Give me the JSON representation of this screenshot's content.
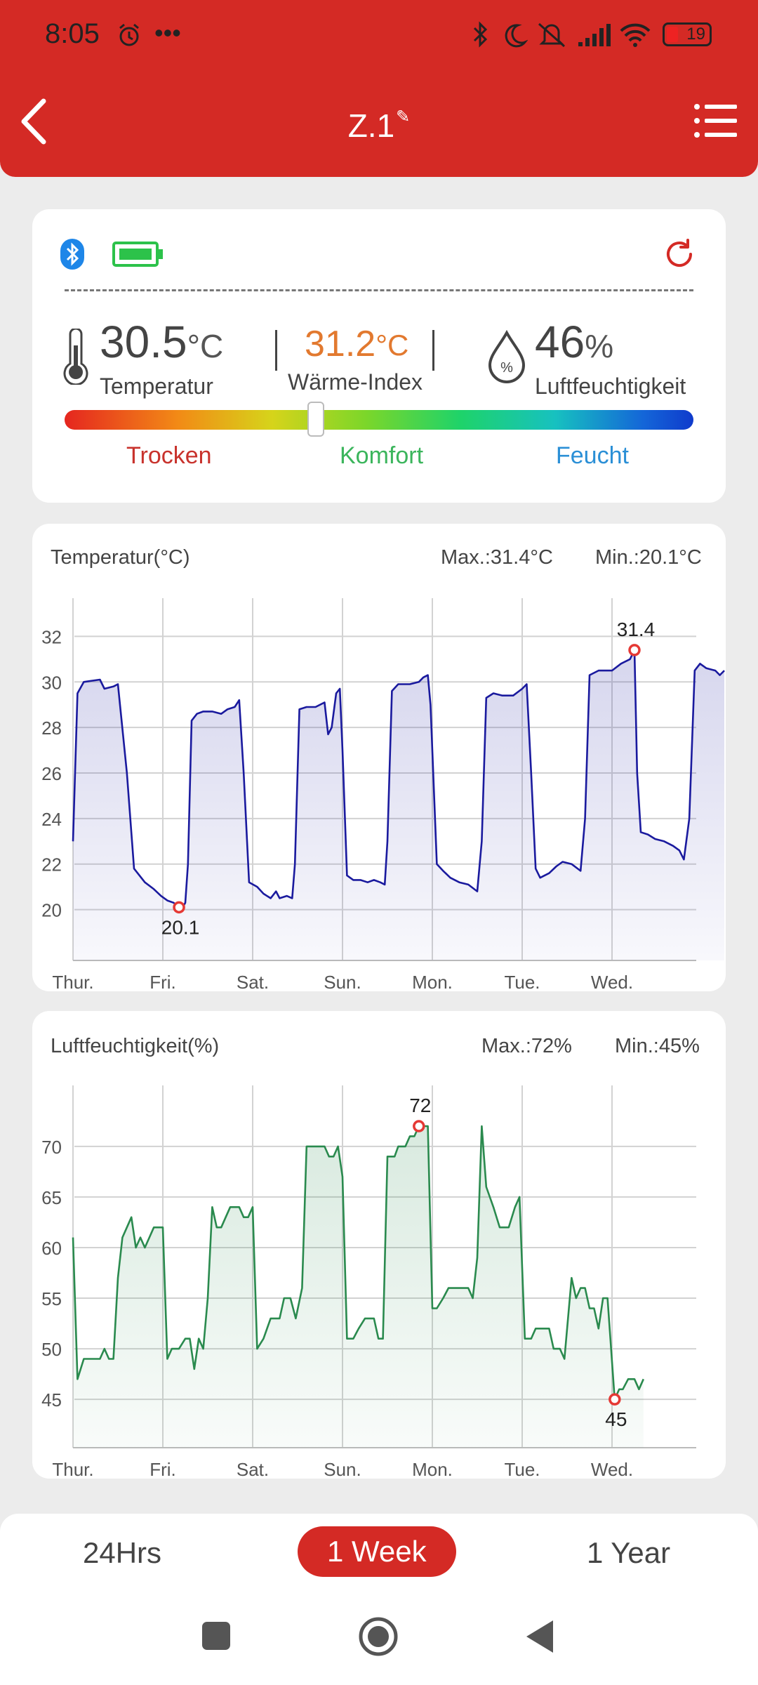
{
  "status_bar": {
    "time": "8:05",
    "battery": "19"
  },
  "header": {
    "title": "Z.1",
    "edit_icon": "edit-icon"
  },
  "sensor": {
    "temperature": {
      "value": "30.5",
      "unit": "°C",
      "label": "Temperatur"
    },
    "heat_index": {
      "value": "31.2",
      "unit": "°C",
      "label": "Wärme-Index"
    },
    "humidity": {
      "value": "46",
      "unit": "%",
      "label": "Luftfeuchtigkeit"
    },
    "comfort_bar": {
      "position": 0.4,
      "labels": [
        "Trocken",
        "Komfort",
        "Feucht"
      ]
    },
    "colors": {
      "dry": "#c8322c",
      "comfort": "#3bb55c",
      "humid": "#2a8fd6",
      "heat": "#e2792f"
    }
  },
  "temp_chart": {
    "title": "Temperatur(°C)",
    "max_label": "Max.:31.4°C",
    "min_label": "Min.:20.1°C"
  },
  "hum_chart": {
    "title": "Luftfeuchtigkeit(%)",
    "max_label": "Max.:72%",
    "min_label": "Min.:45%"
  },
  "chart_data": [
    {
      "type": "area",
      "title": "Temperatur(°C)",
      "x_ticks": [
        "Thur.",
        "Fri.",
        "Sat.",
        "Sun.",
        "Mon.",
        "Tue.",
        "Wed."
      ],
      "y_ticks": [
        20,
        22,
        24,
        26,
        28,
        30,
        32
      ],
      "ylim": [
        19,
        33
      ],
      "xlim": [
        0,
        7
      ],
      "color": "#1a1a9e",
      "points": [
        [
          0,
          23
        ],
        [
          0.05,
          29.5
        ],
        [
          0.12,
          30
        ],
        [
          0.3,
          30.1
        ],
        [
          0.35,
          29.7
        ],
        [
          0.45,
          29.8
        ],
        [
          0.5,
          29.9
        ],
        [
          0.6,
          26
        ],
        [
          0.68,
          21.8
        ],
        [
          0.8,
          21.2
        ],
        [
          0.9,
          20.9
        ],
        [
          0.98,
          20.6
        ],
        [
          1.05,
          20.4
        ],
        [
          1.12,
          20.3
        ],
        [
          1.15,
          20.2
        ],
        [
          1.18,
          20.1
        ],
        [
          1.22,
          20.1
        ],
        [
          1.25,
          20.3
        ],
        [
          1.28,
          22
        ],
        [
          1.32,
          28.3
        ],
        [
          1.38,
          28.6
        ],
        [
          1.45,
          28.7
        ],
        [
          1.55,
          28.7
        ],
        [
          1.65,
          28.6
        ],
        [
          1.72,
          28.8
        ],
        [
          1.8,
          28.9
        ],
        [
          1.85,
          29.2
        ],
        [
          1.9,
          26
        ],
        [
          1.96,
          21.2
        ],
        [
          2.05,
          21
        ],
        [
          2.12,
          20.7
        ],
        [
          2.2,
          20.5
        ],
        [
          2.26,
          20.8
        ],
        [
          2.3,
          20.5
        ],
        [
          2.38,
          20.6
        ],
        [
          2.44,
          20.5
        ],
        [
          2.47,
          22
        ],
        [
          2.52,
          28.8
        ],
        [
          2.6,
          28.9
        ],
        [
          2.7,
          28.9
        ],
        [
          2.8,
          29.1
        ],
        [
          2.84,
          27.7
        ],
        [
          2.88,
          28
        ],
        [
          2.93,
          29.5
        ],
        [
          2.97,
          29.7
        ],
        [
          3.0,
          27
        ],
        [
          3.05,
          21.5
        ],
        [
          3.12,
          21.3
        ],
        [
          3.2,
          21.3
        ],
        [
          3.28,
          21.2
        ],
        [
          3.35,
          21.3
        ],
        [
          3.42,
          21.2
        ],
        [
          3.47,
          21.1
        ],
        [
          3.5,
          23
        ],
        [
          3.55,
          29.6
        ],
        [
          3.62,
          29.9
        ],
        [
          3.75,
          29.9
        ],
        [
          3.85,
          30
        ],
        [
          3.9,
          30.2
        ],
        [
          3.95,
          30.3
        ],
        [
          3.98,
          29
        ],
        [
          4.05,
          22
        ],
        [
          4.12,
          21.7
        ],
        [
          4.2,
          21.4
        ],
        [
          4.3,
          21.2
        ],
        [
          4.4,
          21.1
        ],
        [
          4.5,
          20.8
        ],
        [
          4.55,
          23
        ],
        [
          4.6,
          29.3
        ],
        [
          4.68,
          29.5
        ],
        [
          4.78,
          29.4
        ],
        [
          4.9,
          29.4
        ],
        [
          5.0,
          29.7
        ],
        [
          5.05,
          29.9
        ],
        [
          5.1,
          26
        ],
        [
          5.15,
          21.8
        ],
        [
          5.2,
          21.4
        ],
        [
          5.3,
          21.6
        ],
        [
          5.38,
          21.9
        ],
        [
          5.45,
          22.1
        ],
        [
          5.55,
          22
        ],
        [
          5.65,
          21.7
        ],
        [
          5.7,
          24
        ],
        [
          5.75,
          30.3
        ],
        [
          5.85,
          30.5
        ],
        [
          6.0,
          30.5
        ],
        [
          6.1,
          30.8
        ],
        [
          6.2,
          31
        ],
        [
          6.25,
          31.4
        ],
        [
          6.28,
          26
        ],
        [
          6.32,
          23.4
        ],
        [
          6.4,
          23.3
        ],
        [
          6.48,
          23.1
        ],
        [
          6.58,
          23
        ],
        [
          6.68,
          22.8
        ],
        [
          6.75,
          22.6
        ],
        [
          6.8,
          22.2
        ],
        [
          6.86,
          24
        ],
        [
          6.92,
          30.5
        ],
        [
          6.98,
          30.8
        ],
        [
          7.05,
          30.6
        ],
        [
          7.15,
          30.5
        ],
        [
          7.2,
          30.3
        ],
        [
          7.25,
          30.5
        ]
      ],
      "max": {
        "x": 6.25,
        "y": 31.4,
        "label": "31.4"
      },
      "min": {
        "x": 1.18,
        "y": 20.1,
        "label": "20.1"
      }
    },
    {
      "type": "area",
      "title": "Luftfeuchtigkeit(%)",
      "x_ticks": [
        "Thur.",
        "Fri.",
        "Sat.",
        "Sun.",
        "Mon.",
        "Tue.",
        "Wed."
      ],
      "y_ticks": [
        45,
        50,
        55,
        60,
        65,
        70
      ],
      "ylim": [
        43,
        74.5
      ],
      "xlim": [
        0,
        7
      ],
      "color": "#2a8a4e",
      "points": [
        [
          0,
          61
        ],
        [
          0.05,
          47
        ],
        [
          0.12,
          49
        ],
        [
          0.25,
          49
        ],
        [
          0.3,
          49
        ],
        [
          0.35,
          50
        ],
        [
          0.4,
          49
        ],
        [
          0.45,
          49
        ],
        [
          0.5,
          57
        ],
        [
          0.55,
          61
        ],
        [
          0.6,
          62
        ],
        [
          0.65,
          63
        ],
        [
          0.7,
          60
        ],
        [
          0.75,
          61
        ],
        [
          0.8,
          60
        ],
        [
          0.85,
          61
        ],
        [
          0.9,
          62
        ],
        [
          0.95,
          62
        ],
        [
          1.0,
          62
        ],
        [
          1.05,
          49
        ],
        [
          1.1,
          50
        ],
        [
          1.18,
          50
        ],
        [
          1.25,
          51
        ],
        [
          1.3,
          51
        ],
        [
          1.35,
          48
        ],
        [
          1.4,
          51
        ],
        [
          1.45,
          50
        ],
        [
          1.5,
          55
        ],
        [
          1.55,
          64
        ],
        [
          1.6,
          62
        ],
        [
          1.65,
          62
        ],
        [
          1.7,
          63
        ],
        [
          1.75,
          64
        ],
        [
          1.85,
          64
        ],
        [
          1.9,
          63
        ],
        [
          1.95,
          63
        ],
        [
          2.0,
          64
        ],
        [
          2.05,
          50
        ],
        [
          2.12,
          51
        ],
        [
          2.2,
          53
        ],
        [
          2.3,
          53
        ],
        [
          2.35,
          55
        ],
        [
          2.42,
          55
        ],
        [
          2.48,
          53
        ],
        [
          2.55,
          56
        ],
        [
          2.6,
          70
        ],
        [
          2.7,
          70
        ],
        [
          2.8,
          70
        ],
        [
          2.85,
          69
        ],
        [
          2.9,
          69
        ],
        [
          2.95,
          70
        ],
        [
          3.0,
          67
        ],
        [
          3.05,
          51
        ],
        [
          3.12,
          51
        ],
        [
          3.18,
          52
        ],
        [
          3.25,
          53
        ],
        [
          3.35,
          53
        ],
        [
          3.4,
          51
        ],
        [
          3.45,
          51
        ],
        [
          3.5,
          69
        ],
        [
          3.58,
          69
        ],
        [
          3.62,
          70
        ],
        [
          3.7,
          70
        ],
        [
          3.75,
          71
        ],
        [
          3.8,
          71
        ],
        [
          3.85,
          72
        ],
        [
          3.9,
          72
        ],
        [
          3.95,
          72
        ],
        [
          4.0,
          54
        ],
        [
          4.05,
          54
        ],
        [
          4.12,
          55
        ],
        [
          4.18,
          56
        ],
        [
          4.3,
          56
        ],
        [
          4.4,
          56
        ],
        [
          4.45,
          55
        ],
        [
          4.5,
          59
        ],
        [
          4.55,
          72
        ],
        [
          4.6,
          66
        ],
        [
          4.68,
          64
        ],
        [
          4.75,
          62
        ],
        [
          4.85,
          62
        ],
        [
          4.92,
          64
        ],
        [
          4.97,
          65
        ],
        [
          5.03,
          51
        ],
        [
          5.1,
          51
        ],
        [
          5.15,
          52
        ],
        [
          5.3,
          52
        ],
        [
          5.35,
          50
        ],
        [
          5.42,
          50
        ],
        [
          5.47,
          49
        ],
        [
          5.55,
          57
        ],
        [
          5.6,
          55
        ],
        [
          5.65,
          56
        ],
        [
          5.7,
          56
        ],
        [
          5.75,
          54
        ],
        [
          5.8,
          54
        ],
        [
          5.85,
          52
        ],
        [
          5.9,
          55
        ],
        [
          5.95,
          55
        ],
        [
          6.03,
          45
        ],
        [
          6.08,
          46
        ],
        [
          6.12,
          46
        ],
        [
          6.18,
          47
        ],
        [
          6.25,
          47
        ],
        [
          6.3,
          46
        ],
        [
          6.35,
          47
        ]
      ],
      "max": {
        "x": 3.85,
        "y": 72,
        "label": "72"
      },
      "min": {
        "x": 6.03,
        "y": 45,
        "label": "45"
      }
    }
  ],
  "tabs": [
    "24Hrs",
    "1 Week",
    "1 Year"
  ],
  "active_tab": "1 Week"
}
